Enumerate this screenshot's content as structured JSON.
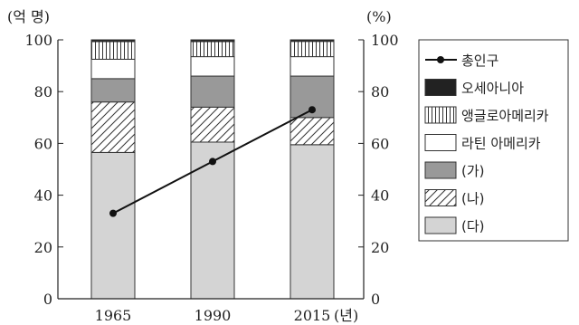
{
  "chart_data": {
    "type": "bar",
    "stacked": true,
    "categories": [
      "1965",
      "1990",
      "2015"
    ],
    "x_suffix": "(년)",
    "left_axis": {
      "unit_label": "(억 명)",
      "ylim": [
        0,
        100
      ],
      "ticks": [
        "0",
        "20",
        "40",
        "60",
        "80",
        "100"
      ]
    },
    "right_axis": {
      "unit_label": "(%)",
      "ylim": [
        0,
        100
      ],
      "ticks": [
        "0",
        "20",
        "40",
        "60",
        "80",
        "100"
      ]
    },
    "series": [
      {
        "name": "(다)",
        "kind": "bar",
        "fill": "#d4d4d4",
        "values": [
          56.5,
          60.5,
          59.5
        ]
      },
      {
        "name": "(나)",
        "kind": "bar",
        "fill": "hatch-diagonal",
        "values": [
          19.5,
          13.5,
          10.5
        ]
      },
      {
        "name": "(가)",
        "kind": "bar",
        "fill": "#999999",
        "values": [
          9.0,
          12.0,
          16.0
        ]
      },
      {
        "name": "라틴 아메리카",
        "kind": "bar",
        "fill": "#ffffff",
        "values": [
          7.5,
          7.5,
          7.5
        ]
      },
      {
        "name": "앵글로아메리카",
        "kind": "bar",
        "fill": "hatch-vertical",
        "values": [
          6.8,
          5.8,
          5.9
        ]
      },
      {
        "name": "오세아니아",
        "kind": "bar",
        "fill": "#222222",
        "values": [
          0.7,
          0.7,
          0.6
        ]
      },
      {
        "name": "총인구",
        "kind": "line",
        "axis": "left",
        "values": [
          33,
          53,
          73
        ]
      }
    ],
    "legend": {
      "position": "right",
      "order": [
        "총인구",
        "오세아니아",
        "앵글로아메리카",
        "라틴 아메리카",
        "(가)",
        "(나)",
        "(다)"
      ]
    },
    "grid": false
  }
}
